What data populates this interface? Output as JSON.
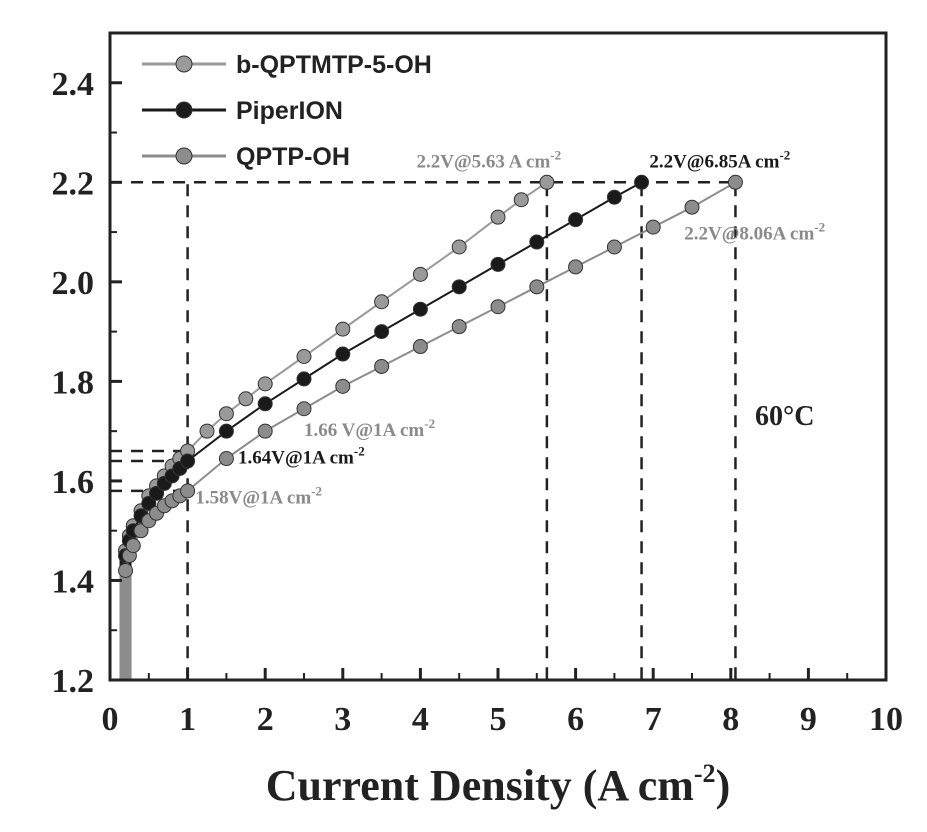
{
  "chart_data": {
    "type": "line",
    "title": "",
    "xlabel": "Current Density (A cm",
    "xlabel_sup": "-2",
    "xlabel_close": ")",
    "ylabel": "",
    "xlim": [
      0,
      10
    ],
    "ylim": [
      1.2,
      2.5
    ],
    "xticks": [
      0,
      1,
      2,
      3,
      4,
      5,
      6,
      7,
      8,
      9,
      10
    ],
    "xtick_labels": [
      "0",
      "1",
      "2",
      "3",
      "4",
      "5",
      "6",
      "7",
      "8",
      "9",
      "10"
    ],
    "yticks": [
      1.2,
      1.4,
      1.6,
      1.8,
      2.0,
      2.2,
      2.4
    ],
    "ytick_labels": [
      "1.2",
      "1.4",
      "1.6",
      "1.8",
      "2.0",
      "2.2",
      "2.4"
    ],
    "legend_position": "top-left",
    "temperature_label": "60°C",
    "series": [
      {
        "name": "b-QPTMTP-5-OH",
        "color": "#9a9a9a",
        "x": [
          0.2,
          0.25,
          0.3,
          0.4,
          0.5,
          0.6,
          0.7,
          0.8,
          0.9,
          1.0,
          1.25,
          1.5,
          1.75,
          2.0,
          2.5,
          3.0,
          3.5,
          4.0,
          4.5,
          5.0,
          5.3,
          5.63
        ],
        "y": [
          1.46,
          1.49,
          1.51,
          1.54,
          1.57,
          1.59,
          1.61,
          1.63,
          1.645,
          1.66,
          1.7,
          1.735,
          1.765,
          1.795,
          1.85,
          1.905,
          1.96,
          2.015,
          2.07,
          2.13,
          2.165,
          2.2
        ]
      },
      {
        "name": "PiperION",
        "color": "#1a1a1a",
        "x": [
          0.2,
          0.25,
          0.3,
          0.4,
          0.5,
          0.6,
          0.7,
          0.8,
          0.9,
          1.0,
          1.5,
          2.0,
          2.5,
          3.0,
          3.5,
          4.0,
          4.5,
          5.0,
          5.5,
          6.0,
          6.5,
          6.85
        ],
        "y": [
          1.45,
          1.48,
          1.5,
          1.53,
          1.555,
          1.575,
          1.595,
          1.61,
          1.625,
          1.64,
          1.7,
          1.755,
          1.805,
          1.855,
          1.9,
          1.945,
          1.99,
          2.035,
          2.08,
          2.125,
          2.17,
          2.2
        ]
      },
      {
        "name": "QPTP-OH",
        "color": "#8c8c8c",
        "x": [
          0.2,
          0.25,
          0.3,
          0.4,
          0.5,
          0.6,
          0.7,
          0.8,
          0.9,
          1.0,
          1.5,
          2.0,
          2.5,
          3.0,
          3.5,
          4.0,
          4.5,
          5.0,
          5.5,
          6.0,
          6.5,
          7.0,
          7.5,
          8.06
        ],
        "y": [
          1.42,
          1.45,
          1.47,
          1.5,
          1.52,
          1.535,
          1.55,
          1.56,
          1.57,
          1.58,
          1.645,
          1.7,
          1.745,
          1.79,
          1.83,
          1.87,
          1.91,
          1.95,
          1.99,
          2.03,
          2.07,
          2.11,
          2.15,
          2.2
        ]
      }
    ],
    "annotations": [
      {
        "text": "1.66 V@1A cm",
        "sup": "-2",
        "x": 2.5,
        "y": 1.69,
        "color": "#8a8a8a"
      },
      {
        "text": "1.64V@1A cm",
        "sup": "-2",
        "x": 1.65,
        "y": 1.635,
        "color": "#1a1a1a"
      },
      {
        "text": "1.58V@1A cm",
        "sup": "-2",
        "x": 1.1,
        "y": 1.555,
        "color": "#8a8a8a"
      },
      {
        "text": "2.2V@5.63 A cm",
        "sup": "-2",
        "x": 3.95,
        "y": 2.23,
        "color": "#8a8a8a"
      },
      {
        "text": "2.2V@6.85A cm",
        "sup": "-2",
        "x": 6.95,
        "y": 2.23,
        "color": "#1a1a1a"
      },
      {
        "text": "2.2V@8.06A cm",
        "sup": "-2",
        "x": 7.4,
        "y": 2.085,
        "color": "#8a8a8a"
      }
    ],
    "reference_lines": {
      "vertical_x": [
        1,
        5.63,
        6.85,
        8.06
      ],
      "horizontal_y": [
        2.2,
        1.66,
        1.64,
        1.58
      ]
    }
  }
}
